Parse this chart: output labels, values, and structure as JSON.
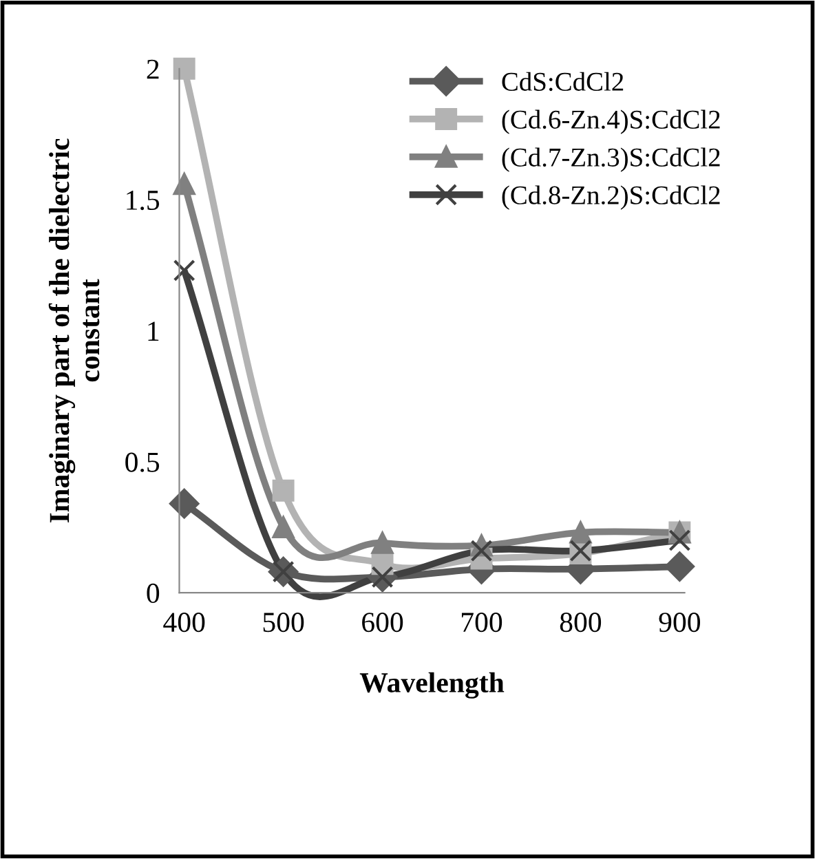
{
  "chart_data": {
    "type": "line",
    "xlabel": "Wavelength",
    "ylabel": "Imaginary part of the dielectric\nconstant",
    "categories": [
      "400",
      "500",
      "600",
      "700",
      "800",
      "900"
    ],
    "series": [
      {
        "name": "CdS:CdCl2",
        "color": "#5a5a5a",
        "marker": "diamond",
        "values": [
          0.34,
          0.08,
          0.06,
          0.09,
          0.09,
          0.1
        ]
      },
      {
        "name": "(Cd.6-Zn.4)S:CdCl2",
        "color": "#b3b3b3",
        "marker": "square",
        "values": [
          2.0,
          0.39,
          0.11,
          0.13,
          0.15,
          0.23
        ]
      },
      {
        "name": "(Cd.7-Zn.3)S:CdCl2",
        "color": "#808080",
        "marker": "triangle",
        "values": [
          1.56,
          0.25,
          0.19,
          0.18,
          0.23,
          0.23
        ]
      },
      {
        "name": "(Cd.8-Zn.2)S:CdCl2",
        "color": "#404040",
        "marker": "cross",
        "values": [
          1.23,
          0.08,
          0.06,
          0.16,
          0.16,
          0.2
        ]
      }
    ],
    "ylim": [
      0,
      2
    ],
    "yticks": [
      0,
      0.5,
      1,
      1.5,
      2
    ],
    "grid": false,
    "legend": "top right"
  }
}
